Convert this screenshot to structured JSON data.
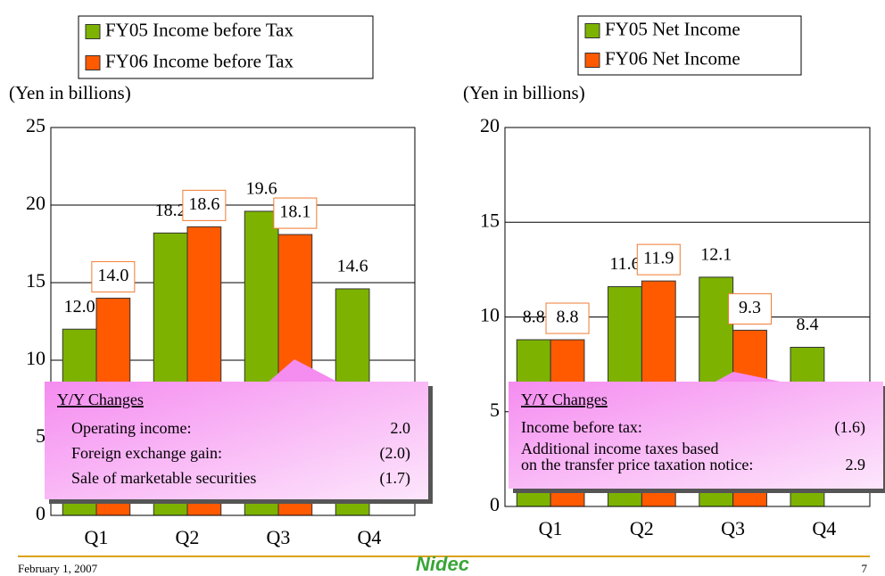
{
  "chart_data": [
    {
      "type": "bar",
      "unit_label": "(Yen in billions)",
      "categories": [
        "Q1",
        "Q2",
        "Q3",
        "Q4"
      ],
      "series": [
        {
          "name": "FY05 Income before Tax",
          "color": "#7db300",
          "values": [
            12.0,
            18.2,
            19.6,
            14.6
          ],
          "value_labels": [
            "12.0",
            "18.2",
            "19.6",
            "14.6"
          ]
        },
        {
          "name": "FY06 Income before Tax",
          "color": "#ff5a00",
          "values": [
            14.0,
            18.6,
            18.1,
            null
          ],
          "value_labels": [
            "14.0",
            "18.6",
            "18.1",
            null
          ]
        }
      ],
      "ylim": [
        0,
        25
      ],
      "yticks": [
        0,
        5,
        10,
        15,
        20,
        25
      ],
      "grid": true,
      "annotation": {
        "title": "Y/Y Changes",
        "rows": [
          {
            "label": "Operating income:",
            "value": "2.0"
          },
          {
            "label": "Foreign exchange gain:",
            "value": "(2.0)"
          },
          {
            "label": "Sale of marketable securities",
            "value": "(1.7)"
          }
        ]
      }
    },
    {
      "type": "bar",
      "unit_label": "(Yen in billions)",
      "categories": [
        "Q1",
        "Q2",
        "Q3",
        "Q4"
      ],
      "series": [
        {
          "name": "FY05 Net Income",
          "color": "#7db300",
          "values": [
            8.8,
            11.6,
            12.1,
            8.4
          ],
          "value_labels": [
            "8.8",
            "11.6",
            "12.1",
            "8.4"
          ]
        },
        {
          "name": "FY06 Net Income",
          "color": "#ff5a00",
          "values": [
            8.8,
            11.9,
            9.3,
            null
          ],
          "value_labels": [
            "8.8",
            "11.9",
            "9.3",
            null
          ]
        }
      ],
      "ylim": [
        0,
        20
      ],
      "yticks": [
        0,
        5,
        10,
        15,
        20
      ],
      "grid": true,
      "annotation": {
        "title": "Y/Y Changes",
        "rows": [
          {
            "label": "Income before tax:",
            "value": "(1.6)"
          },
          {
            "label": "Additional income taxes based"
          },
          {
            "label": "on the transfer price taxation notice:",
            "value": "2.9"
          }
        ]
      }
    }
  ],
  "footer": {
    "date": "February 1, 2007",
    "logo": "Nidec",
    "page": "7"
  }
}
